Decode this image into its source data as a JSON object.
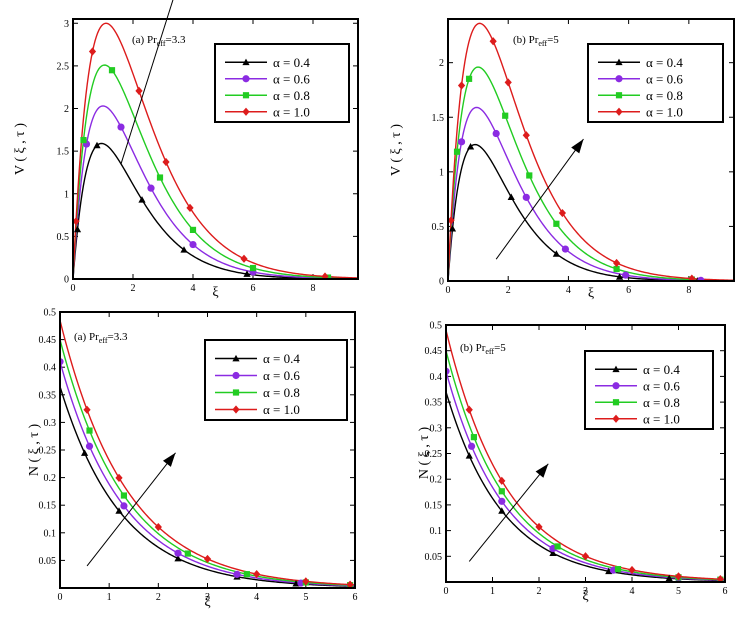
{
  "chart_data": [
    {
      "type": "line",
      "panel_label": "(a) Pr",
      "panel_sub": "eff",
      "panel_tail": "=3.3",
      "ylabel": "V ( ξ , τ )",
      "xlabel": "ξ",
      "xlim": [
        0,
        9.5
      ],
      "ylim": [
        0,
        3.05
      ],
      "xticks": [
        0,
        2,
        4,
        6,
        8
      ],
      "yticks": [
        0,
        0.5,
        1,
        1.5,
        2,
        2.5,
        3
      ],
      "legend": [
        "α = 0.4",
        "α = 0.6",
        "α = 0.8",
        "α = 1.0"
      ],
      "arrow": {
        "from": [
          1.6,
          1.35
        ],
        "to": [
          4.3,
          4.35
        ]
      },
      "series": [
        {
          "name": "α = 0.4",
          "color": "#000000",
          "marker": "triangle",
          "curve": {
            "kind": "peak",
            "A": 1.59,
            "p": 0.95
          },
          "markers": [
            0.15,
            0.8,
            2.3,
            3.7,
            5.8,
            8.5
          ]
        },
        {
          "name": "α = 0.6",
          "color": "#8b2be2",
          "marker": "circle",
          "curve": {
            "kind": "peak",
            "A": 2.03,
            "p": 1.0
          },
          "markers": [
            0.45,
            1.6,
            2.6,
            4.0,
            6.0,
            8.5
          ]
        },
        {
          "name": "α = 0.8",
          "color": "#22cc22",
          "marker": "square",
          "curve": {
            "kind": "peak",
            "A": 2.51,
            "p": 1.05
          },
          "markers": [
            0.35,
            1.3,
            2.9,
            4.0,
            6.0,
            8.5
          ]
        },
        {
          "name": "α = 1.0",
          "color": "#dd1c1c",
          "marker": "diamond",
          "curve": {
            "kind": "peak",
            "A": 3.0,
            "p": 1.1
          },
          "markers": [
            0.1,
            0.65,
            2.2,
            3.1,
            3.9,
            5.7,
            8.4
          ]
        }
      ]
    },
    {
      "type": "line",
      "panel_label": "(b) Pr",
      "panel_sub": "eff",
      "panel_tail": "=5",
      "ylabel": "V ( ξ , τ )",
      "xlabel": "ξ",
      "xlim": [
        0,
        9.5
      ],
      "ylim": [
        0,
        2.4
      ],
      "xticks": [
        0,
        2,
        4,
        6,
        8
      ],
      "yticks": [
        0,
        0.5,
        1,
        1.5,
        2
      ],
      "legend": [
        "α = 0.4",
        "α = 0.6",
        "α = 0.8",
        "α = 1.0"
      ],
      "arrow": {
        "from": [
          1.6,
          0.2
        ],
        "to": [
          4.5,
          1.3
        ]
      },
      "series": [
        {
          "name": "α = 0.4",
          "color": "#000000",
          "marker": "triangle",
          "curve": {
            "kind": "peak",
            "A": 1.25,
            "p": 0.9
          },
          "markers": [
            0.15,
            0.75,
            2.1,
            3.6,
            5.7,
            8.3
          ]
        },
        {
          "name": "α = 0.6",
          "color": "#8b2be2",
          "marker": "circle",
          "curve": {
            "kind": "peak",
            "A": 1.59,
            "p": 0.95
          },
          "markers": [
            0.45,
            1.6,
            2.6,
            3.9,
            5.9,
            8.4
          ]
        },
        {
          "name": "α = 0.8",
          "color": "#22cc22",
          "marker": "square",
          "curve": {
            "kind": "peak",
            "A": 1.96,
            "p": 1.0
          },
          "markers": [
            0.3,
            0.7,
            1.9,
            2.7,
            3.6,
            5.6,
            8.1
          ]
        },
        {
          "name": "α = 1.0",
          "color": "#dd1c1c",
          "marker": "diamond",
          "curve": {
            "kind": "peak",
            "A": 2.36,
            "p": 1.05
          },
          "markers": [
            0.1,
            0.45,
            1.5,
            2.0,
            2.6,
            3.8,
            5.6,
            8.1
          ]
        }
      ]
    },
    {
      "type": "line",
      "panel_label": "(a) Pr",
      "panel_sub": "eff",
      "panel_tail": "=3.3",
      "ylabel": "N ( ξ , τ )",
      "xlabel": "ξ",
      "xlim": [
        0,
        6
      ],
      "ylim": [
        0,
        0.5
      ],
      "xticks": [
        0,
        1,
        2,
        3,
        4,
        5,
        6
      ],
      "yticks": [
        0.05,
        0.1,
        0.15,
        0.2,
        0.25,
        0.3,
        0.35,
        0.4,
        0.45,
        0.5
      ],
      "legend": [
        "α = 0.4",
        "α = 0.6",
        "α = 0.8",
        "α = 1.0"
      ],
      "arrow": {
        "from": [
          0.55,
          0.04
        ],
        "to": [
          2.35,
          0.245
        ]
      },
      "series": [
        {
          "name": "α = 0.4",
          "color": "#000000",
          "marker": "triangle",
          "curve": {
            "kind": "decay",
            "N0": 0.365,
            "k": 0.8
          },
          "markers": [
            0.5,
            1.2,
            2.4,
            3.6,
            4.8,
            5.9
          ]
        },
        {
          "name": "α = 0.6",
          "color": "#8b2be2",
          "marker": "circle",
          "curve": {
            "kind": "decay",
            "N0": 0.41,
            "k": 0.78
          },
          "markers": [
            0,
            0.6,
            1.3,
            2.4,
            3.6,
            4.9,
            5.9
          ]
        },
        {
          "name": "α = 0.8",
          "color": "#22cc22",
          "marker": "square",
          "curve": {
            "kind": "decay",
            "N0": 0.45,
            "k": 0.76
          },
          "markers": [
            0.6,
            1.3,
            2.6,
            3.8,
            5.0,
            5.9
          ]
        },
        {
          "name": "α = 1.0",
          "color": "#dd1c1c",
          "marker": "diamond",
          "curve": {
            "kind": "decay",
            "N0": 0.485,
            "k": 0.74
          },
          "markers": [
            0.55,
            1.2,
            2.0,
            3.0,
            4.0,
            5.0,
            5.9
          ]
        }
      ]
    },
    {
      "type": "line",
      "panel_label": "(b) Pr",
      "panel_sub": "eff",
      "panel_tail": "=5",
      "ylabel": "N ( ξ , τ )",
      "xlabel": "ξ",
      "xlim": [
        0,
        6
      ],
      "ylim": [
        0,
        0.5
      ],
      "xticks": [
        0,
        1,
        2,
        3,
        4,
        5,
        6
      ],
      "yticks": [
        0.05,
        0.1,
        0.15,
        0.2,
        0.25,
        0.3,
        0.35,
        0.4,
        0.45,
        0.5
      ],
      "legend": [
        "α = 0.4",
        "α = 0.6",
        "α = 0.8",
        "α = 1.0"
      ],
      "arrow": {
        "from": [
          0.5,
          0.04
        ],
        "to": [
          2.2,
          0.23
        ]
      },
      "series": [
        {
          "name": "α = 0.4",
          "color": "#000000",
          "marker": "triangle",
          "curve": {
            "kind": "decay",
            "N0": 0.37,
            "k": 0.82
          },
          "markers": [
            0.5,
            1.2,
            2.3,
            3.5,
            4.8,
            5.9
          ]
        },
        {
          "name": "α = 0.6",
          "color": "#8b2be2",
          "marker": "circle",
          "curve": {
            "kind": "decay",
            "N0": 0.41,
            "k": 0.8
          },
          "markers": [
            0,
            0.55,
            1.2,
            2.3,
            3.6,
            5.0,
            5.9
          ]
        },
        {
          "name": "α = 0.8",
          "color": "#22cc22",
          "marker": "square",
          "curve": {
            "kind": "decay",
            "N0": 0.45,
            "k": 0.78
          },
          "markers": [
            0.6,
            1.2,
            2.4,
            3.7,
            5.0,
            5.9
          ]
        },
        {
          "name": "α = 1.0",
          "color": "#dd1c1c",
          "marker": "diamond",
          "curve": {
            "kind": "decay",
            "N0": 0.49,
            "k": 0.76
          },
          "markers": [
            0.5,
            1.2,
            2.0,
            3.0,
            4.0,
            5.0,
            5.9
          ]
        }
      ]
    }
  ]
}
